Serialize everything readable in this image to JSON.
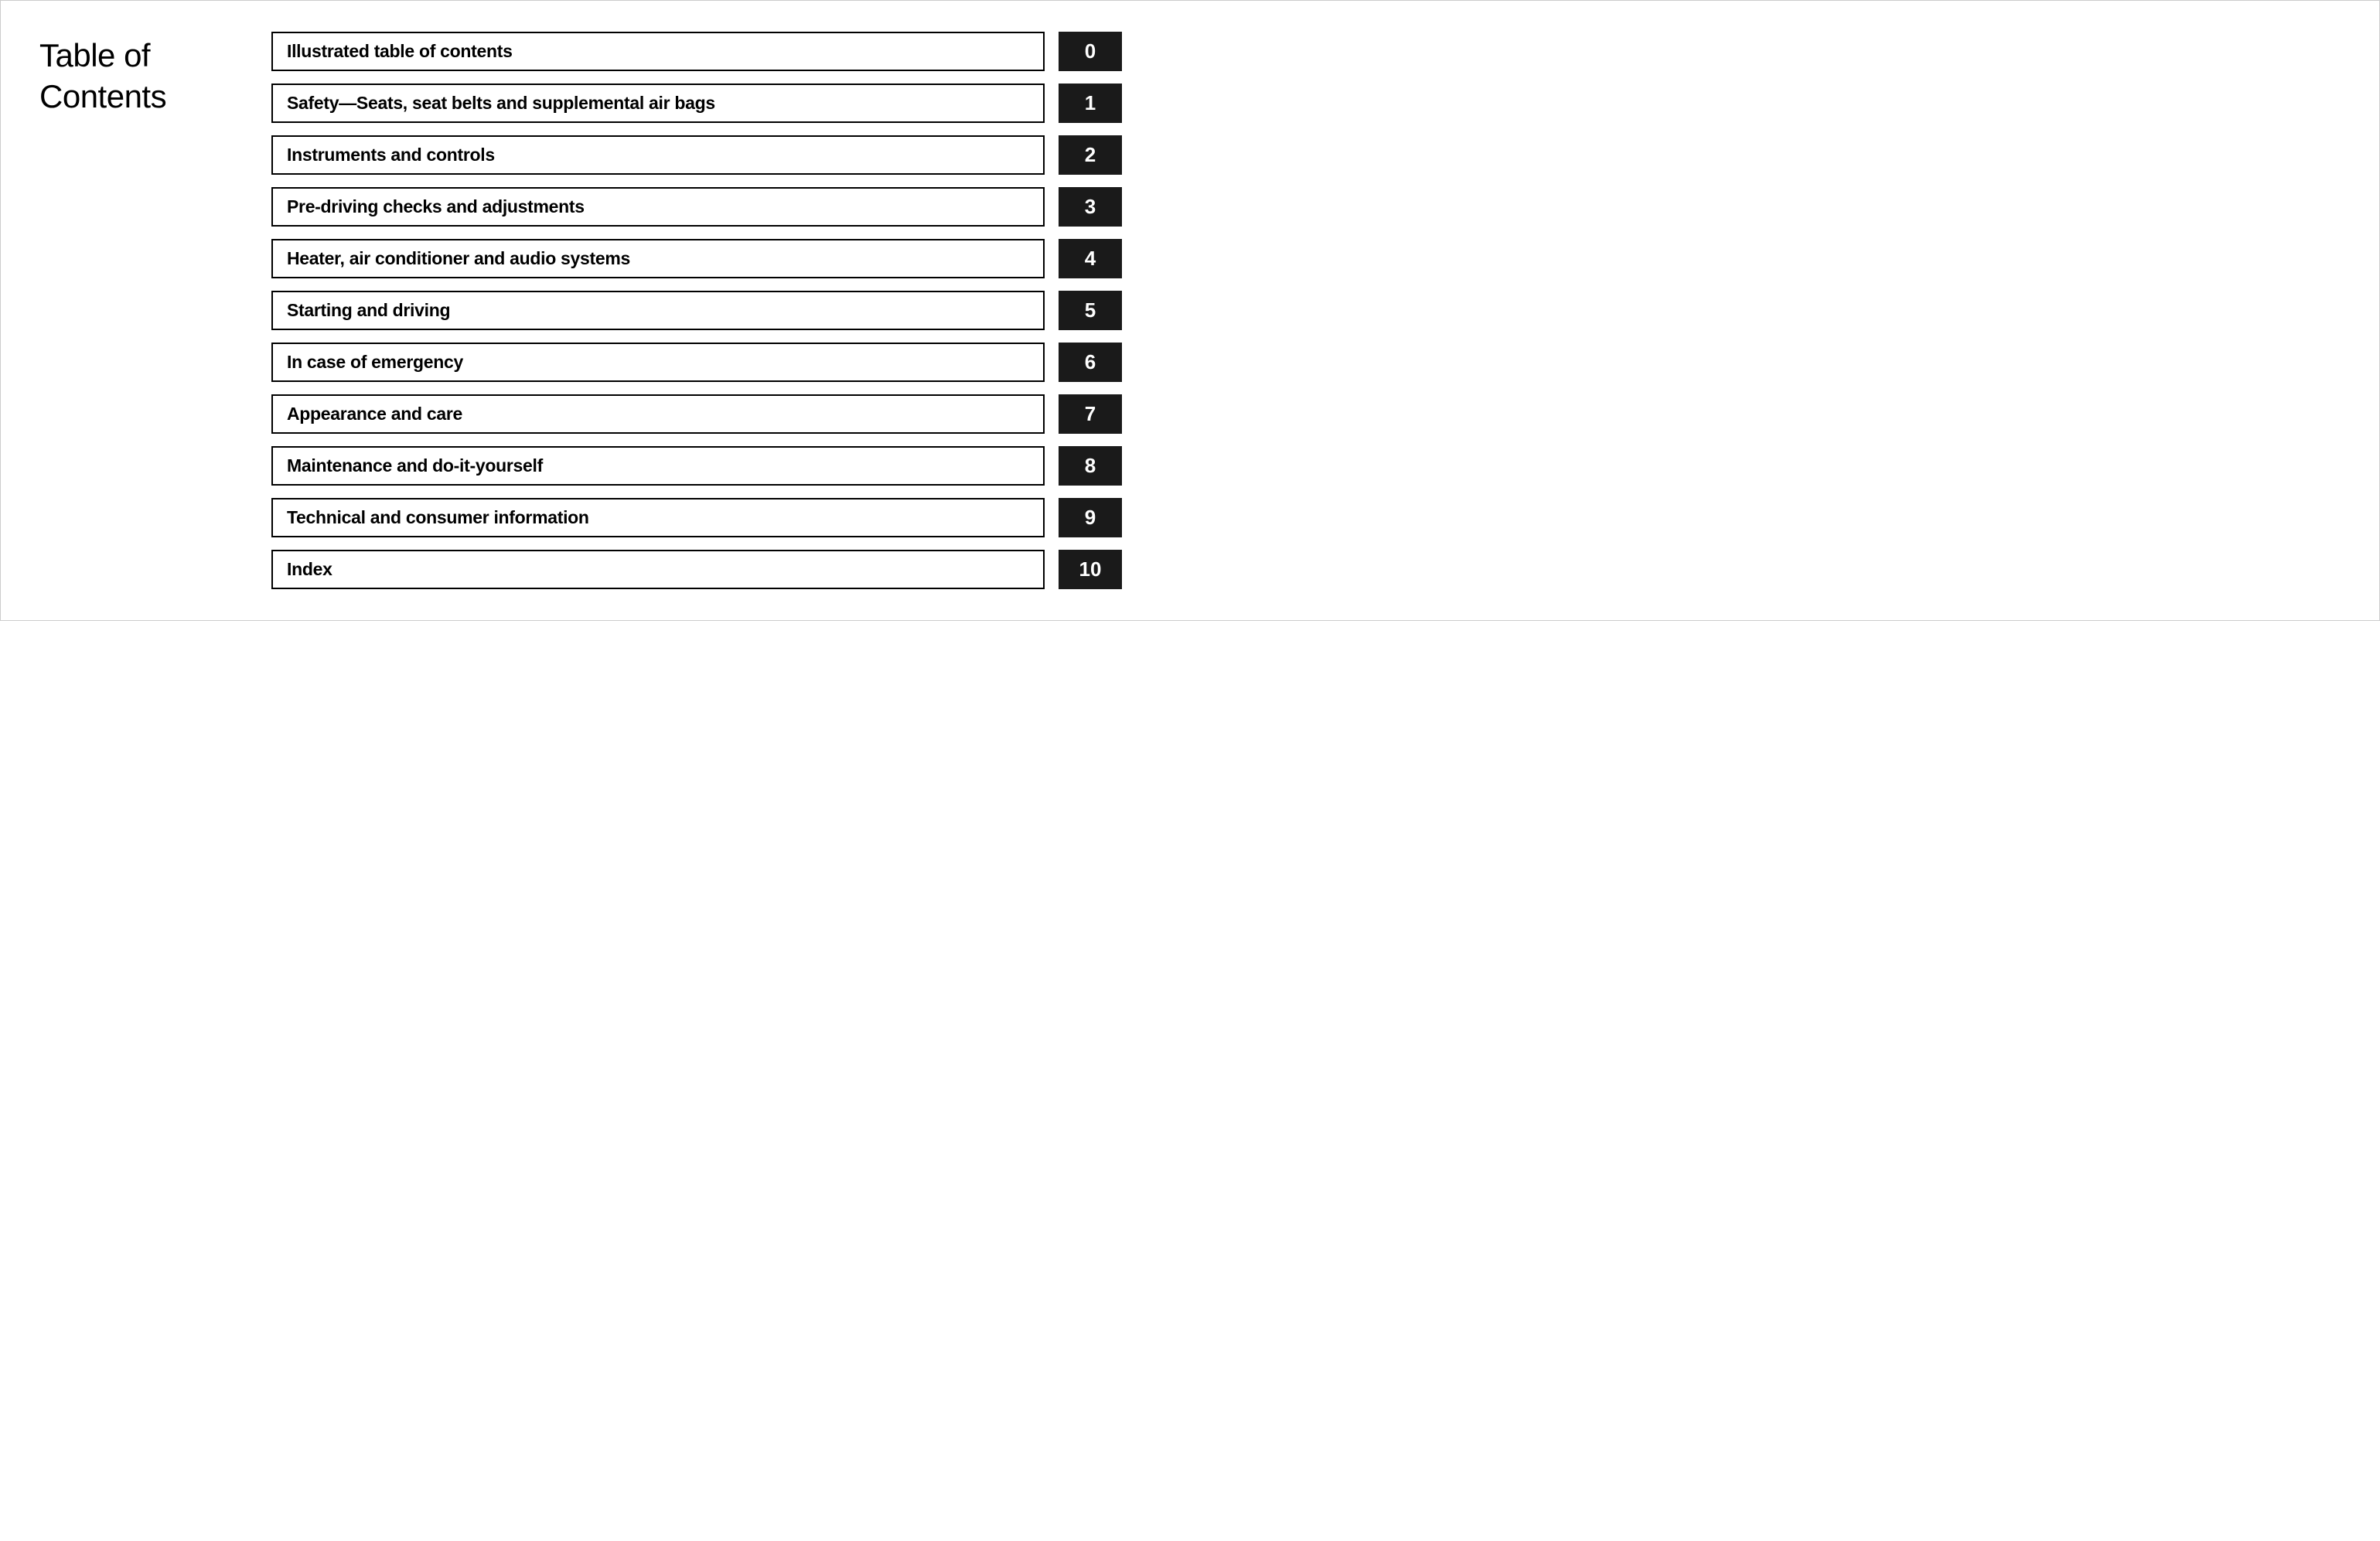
{
  "heading": {
    "line1": "Table of",
    "line2": "Contents"
  },
  "toc": {
    "items": [
      {
        "label": "Illustrated table of contents",
        "number": "0"
      },
      {
        "label": "Safety—Seats, seat belts and supplemental air bags",
        "number": "1"
      },
      {
        "label": "Instruments and controls",
        "number": "2"
      },
      {
        "label": "Pre-driving checks and adjustments",
        "number": "3"
      },
      {
        "label": "Heater, air conditioner and audio systems",
        "number": "4"
      },
      {
        "label": "Starting and driving",
        "number": "5"
      },
      {
        "label": "In case of emergency",
        "number": "6"
      },
      {
        "label": "Appearance and care",
        "number": "7"
      },
      {
        "label": "Maintenance and do-it-yourself",
        "number": "8"
      },
      {
        "label": "Technical and consumer information",
        "number": "9"
      },
      {
        "label": "Index",
        "number": "10"
      }
    ]
  },
  "style": {
    "border_color": "#000000",
    "number_bg": "#1a1a1a",
    "number_fg": "#ffffff",
    "body_bg": "#ffffff",
    "heading_fontsize": 42,
    "label_fontsize": 23,
    "number_fontsize": 26,
    "row_gap": 16,
    "number_box_width": 82
  }
}
